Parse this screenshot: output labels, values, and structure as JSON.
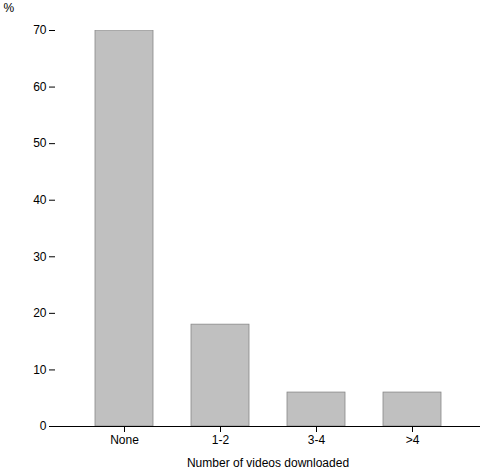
{
  "chart_data": {
    "type": "bar",
    "categories": [
      "None",
      "1-2",
      "3-4",
      ">4"
    ],
    "values": [
      70,
      18,
      6,
      6
    ],
    "color": "#c0c0c0",
    "xlabel": "Number of videos downloaded",
    "ylabel": "%",
    "ylim": [
      0,
      70
    ],
    "yticks": [
      0,
      10,
      20,
      30,
      40,
      50,
      60,
      70
    ],
    "grid": false
  }
}
